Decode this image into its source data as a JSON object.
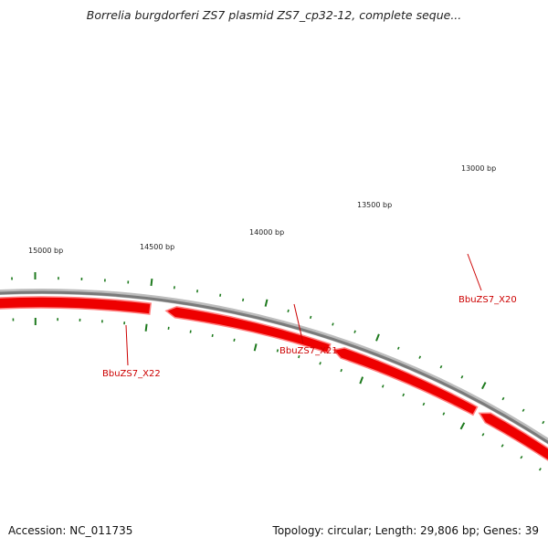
{
  "title": "Borrelia burgdorferi ZS7 plasmid ZS7_cp32-12, complete seque...",
  "footer": {
    "accession": "Accession: NC_011735",
    "summary": "Topology: circular; Length: 29,806 bp; Genes: 39"
  },
  "colors": {
    "backbone": "#7a7a7a",
    "gene": "#ee0000",
    "gene_edge": "#ff8080",
    "tick": "#1e7a1e",
    "gene_label": "#cc0000"
  },
  "map": {
    "topology": "circular",
    "length_bp": 29806,
    "bp_labels": [
      "13000 bp",
      "13500 bp",
      "14000 bp",
      "14500 bp",
      "15000 bp"
    ],
    "genes": [
      {
        "name": "BbuZS7_X20",
        "direction": "reverse"
      },
      {
        "name": "BbuZS7_X21",
        "direction": "reverse"
      },
      {
        "name": "BbuZS7_X22",
        "direction": "reverse"
      }
    ]
  }
}
